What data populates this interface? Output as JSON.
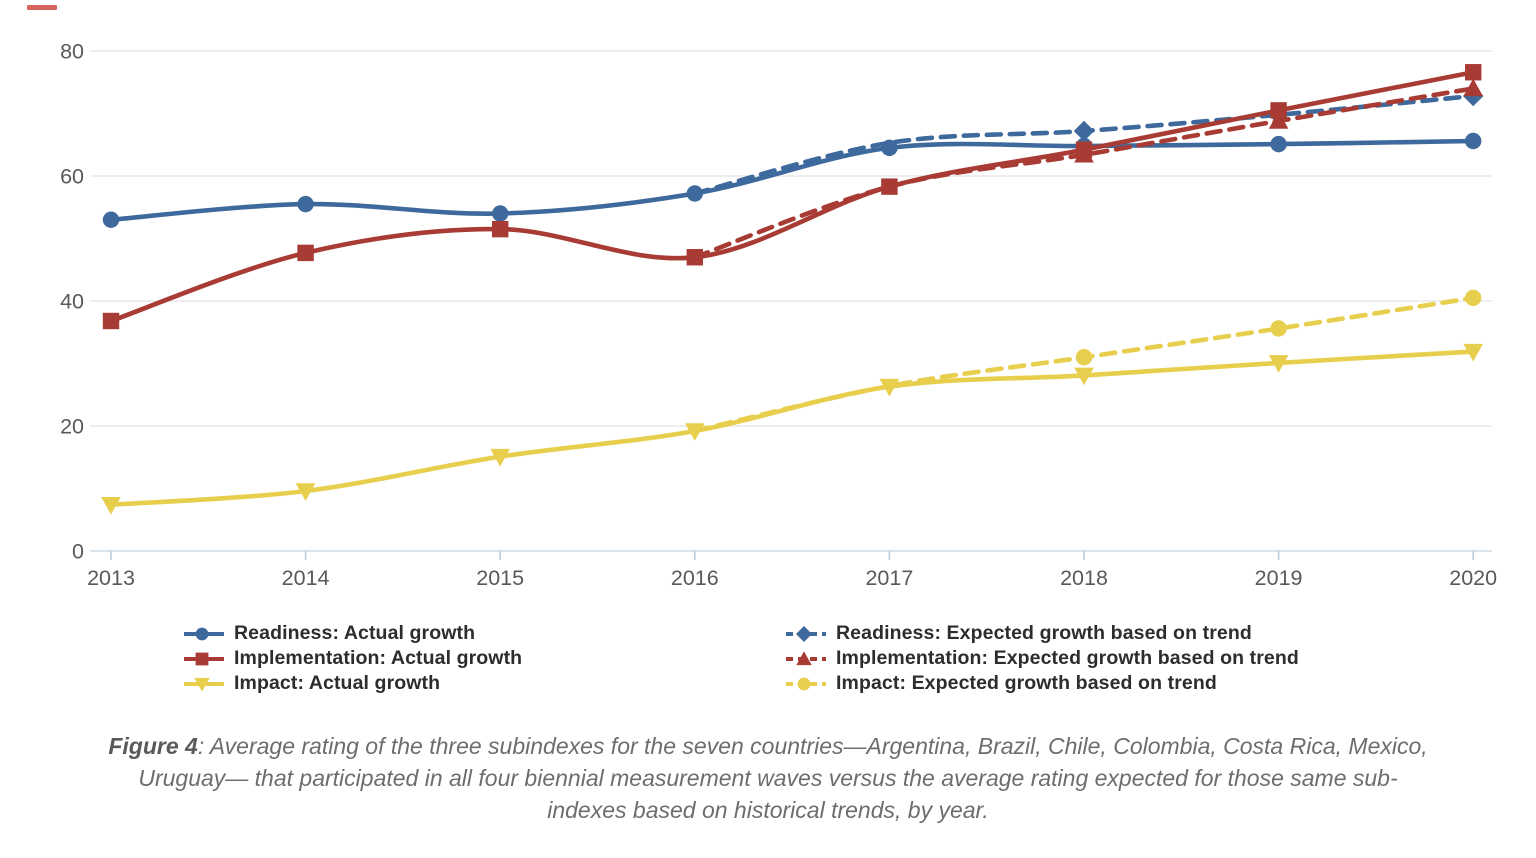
{
  "artifact": {
    "note": "small red dash at top-left of screenshot",
    "color": "#cf4a3e"
  },
  "chart_data": {
    "type": "line",
    "x": [
      "2013",
      "2014",
      "2015",
      "2016",
      "2017",
      "2018",
      "2019",
      "2020"
    ],
    "ylim": [
      0,
      80
    ],
    "yticks": [
      0,
      20,
      40,
      60,
      80
    ],
    "grid": "horizontal",
    "legend_position": "bottom, two columns",
    "axis": {
      "label_color": "#595959",
      "grid_color": "#e4e4e4",
      "baseline_color": "#cfdae4",
      "tick_color": "#b9cedf"
    },
    "series": [
      {
        "id": "readiness-actual",
        "name": "Readiness: Actual growth",
        "color": "#3e699c",
        "line": "solid",
        "marker": "circle",
        "values": [
          53,
          55.5,
          54,
          57.2,
          64.5,
          64.8,
          65.1,
          65.6
        ]
      },
      {
        "id": "implementation-actual",
        "name": "Implementation: Actual growth",
        "color": "#a83b33",
        "line": "solid",
        "marker": "square",
        "values": [
          36.8,
          47.7,
          51.5,
          47,
          58.3,
          64.2,
          70.5,
          76.6
        ]
      },
      {
        "id": "impact-actual",
        "name": "Impact: Actual growth",
        "color": "#e8ce4d",
        "line": "solid",
        "marker": "triangle-down",
        "values": [
          7.4,
          9.6,
          15.1,
          19.2,
          26.3,
          28.1,
          30.1,
          31.9
        ]
      },
      {
        "id": "readiness-expected",
        "name": "Readiness: Expected growth based on trend",
        "color": "#3e699c",
        "line": "dashed",
        "marker": "diamond",
        "values": [
          null,
          null,
          null,
          57.2,
          65.3,
          67.2,
          69.8,
          72.8
        ]
      },
      {
        "id": "implementation-expected",
        "name": "Implementation: Expected growth based on trend",
        "color": "#a83b33",
        "line": "dashed",
        "marker": "triangle-up",
        "values": [
          null,
          null,
          null,
          47,
          58.3,
          63.4,
          68.8,
          74
        ]
      },
      {
        "id": "impact-expected",
        "name": "Impact: Expected growth based on trend",
        "color": "#e8ce4d",
        "line": "dashed",
        "marker": "circle",
        "values": [
          null,
          null,
          null,
          19.2,
          26.4,
          31,
          35.6,
          40.5
        ]
      }
    ]
  },
  "legend": {
    "order": [
      0,
      3,
      1,
      4,
      2,
      5
    ]
  },
  "caption": {
    "label": "Figure 4",
    "line1": ": Average rating of the three subindexes for the seven countries—Argentina, Brazil, Chile, Colombia, Costa Rica, Mexico,",
    "line2": "Uruguay— that participated in all four biennial measurement waves versus the average rating expected for those same sub-",
    "line3": "indexes based on historical trends, by year."
  }
}
